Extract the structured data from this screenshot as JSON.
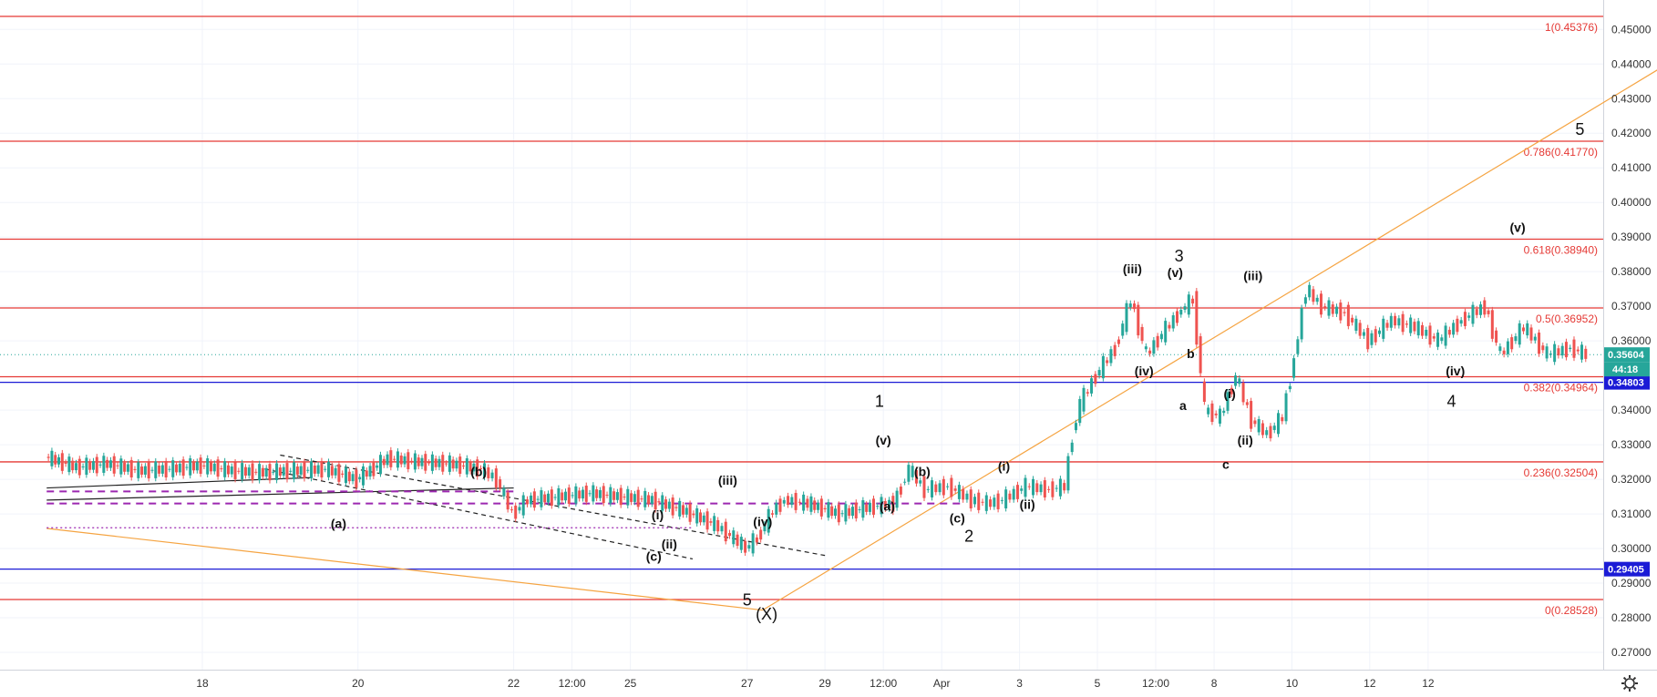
{
  "chart_data": {
    "type": "line",
    "title": "",
    "ylim": [
      0.265,
      0.4585
    ],
    "y_ticks": [
      0.45,
      0.44,
      0.43,
      0.42,
      0.41,
      0.4,
      0.39,
      0.38,
      0.37,
      0.36,
      0.34,
      0.33,
      0.32,
      0.31,
      0.3,
      0.29,
      0.28,
      0.27
    ],
    "y_tick_labels": [
      "0.45000",
      "0.44000",
      "0.43000",
      "0.42000",
      "0.41000",
      "0.40000",
      "0.39000",
      "0.38000",
      "0.37000",
      "0.36000",
      "0.34000",
      "0.33000",
      "0.32000",
      "0.31000",
      "0.30000",
      "0.29000",
      "0.28000",
      "0.27000"
    ],
    "x_ticks": [
      {
        "label": "18",
        "x": 2
      },
      {
        "label": "20",
        "x": 4
      },
      {
        "label": "22",
        "x": 6
      },
      {
        "label": "12:00",
        "x": 6.75
      },
      {
        "label": "25",
        "x": 7.5
      },
      {
        "label": "27",
        "x": 9
      },
      {
        "label": "29",
        "x": 10
      },
      {
        "label": "12:00",
        "x": 10.75
      },
      {
        "label": "Apr",
        "x": 11.5
      },
      {
        "label": "3",
        "x": 12.5
      },
      {
        "label": "5",
        "x": 13.5
      },
      {
        "label": "12:00",
        "x": 14.25
      },
      {
        "label": "8",
        "x": 15
      },
      {
        "label": "10",
        "x": 16
      },
      {
        "label": "12",
        "x": 17
      },
      {
        "label": "12",
        "x": 17.75
      }
    ],
    "fib_levels": [
      {
        "ratio": "1",
        "price": 0.45376,
        "label": "1(0.45376)"
      },
      {
        "ratio": "0.786",
        "price": 0.4177,
        "label": "0.786(0.41770)"
      },
      {
        "ratio": "0.618",
        "price": 0.3894,
        "label": "0.618(0.38940)"
      },
      {
        "ratio": "0.5",
        "price": 0.36952,
        "label": "0.5(0.36952)"
      },
      {
        "ratio": "0.382",
        "price": 0.34964,
        "label": "0.382(0.34964)"
      },
      {
        "ratio": "0.236",
        "price": 0.32504,
        "label": "0.236(0.32504)"
      },
      {
        "ratio": "0",
        "price": 0.28528,
        "label": "0(0.28528)"
      }
    ],
    "horizontal_levels": [
      {
        "price": 0.34803,
        "label": "0.34803"
      },
      {
        "price": 0.29405,
        "label": "0.29405"
      }
    ],
    "current_price": {
      "price": 0.35604,
      "label": "0.35604",
      "countdown": "44:18"
    },
    "price_series": [
      [
        0,
        0.3265
      ],
      [
        0.4,
        0.3235
      ],
      [
        0.8,
        0.3245
      ],
      [
        1.2,
        0.3225
      ],
      [
        1.6,
        0.323
      ],
      [
        2,
        0.324
      ],
      [
        2.4,
        0.3225
      ],
      [
        2.8,
        0.322
      ],
      [
        3.2,
        0.3225
      ],
      [
        3.6,
        0.323
      ],
      [
        4,
        0.32
      ],
      [
        4.4,
        0.326
      ],
      [
        4.8,
        0.325
      ],
      [
        5.2,
        0.3245
      ],
      [
        5.6,
        0.323
      ],
      [
        5.8,
        0.32
      ],
      [
        6,
        0.31
      ],
      [
        6.2,
        0.314
      ],
      [
        6.6,
        0.315
      ],
      [
        7,
        0.316
      ],
      [
        7.4,
        0.315
      ],
      [
        7.8,
        0.314
      ],
      [
        8.2,
        0.311
      ],
      [
        8.6,
        0.307
      ],
      [
        8.9,
        0.302
      ],
      [
        9,
        0.3
      ],
      [
        9.15,
        0.303
      ],
      [
        9.35,
        0.311
      ],
      [
        9.5,
        0.314
      ],
      [
        9.8,
        0.313
      ],
      [
        10.2,
        0.31
      ],
      [
        10.6,
        0.312
      ],
      [
        10.9,
        0.313
      ],
      [
        11,
        0.318
      ],
      [
        11.1,
        0.323
      ],
      [
        11.3,
        0.317
      ],
      [
        11.6,
        0.318
      ],
      [
        11.9,
        0.314
      ],
      [
        12.1,
        0.313
      ],
      [
        12.3,
        0.314
      ],
      [
        12.6,
        0.318
      ],
      [
        12.9,
        0.317
      ],
      [
        13.1,
        0.318
      ],
      [
        13.2,
        0.333
      ],
      [
        13.3,
        0.342
      ],
      [
        13.5,
        0.35
      ],
      [
        13.75,
        0.358
      ],
      [
        13.95,
        0.372
      ],
      [
        14.15,
        0.356
      ],
      [
        14.35,
        0.362
      ],
      [
        14.6,
        0.369
      ],
      [
        14.75,
        0.372
      ],
      [
        14.9,
        0.34
      ],
      [
        15.1,
        0.338
      ],
      [
        15.3,
        0.35
      ],
      [
        15.5,
        0.337
      ],
      [
        15.7,
        0.333
      ],
      [
        15.9,
        0.338
      ],
      [
        16.05,
        0.355
      ],
      [
        16.2,
        0.375
      ],
      [
        16.4,
        0.37
      ],
      [
        16.7,
        0.368
      ],
      [
        17,
        0.36
      ],
      [
        17.3,
        0.366
      ],
      [
        17.6,
        0.364
      ],
      [
        17.9,
        0.36
      ],
      [
        18.2,
        0.366
      ],
      [
        18.5,
        0.37
      ],
      [
        18.7,
        0.356
      ],
      [
        19,
        0.364
      ],
      [
        19.3,
        0.356
      ],
      [
        19.6,
        0.358
      ],
      [
        19.8,
        0.356
      ]
    ],
    "annotations": [
      {
        "text": "1",
        "x": 10.7,
        "y": 0.341,
        "size": "big"
      },
      {
        "text": "(v)",
        "x": 10.75,
        "y": 0.33,
        "size": "small"
      },
      {
        "text": "(b)",
        "x": 11.25,
        "y": 0.321,
        "size": "small"
      },
      {
        "text": "(a)",
        "x": 10.8,
        "y": 0.311,
        "size": "small"
      },
      {
        "text": "(c)",
        "x": 11.7,
        "y": 0.3075,
        "size": "small"
      },
      {
        "text": "2",
        "x": 11.85,
        "y": 0.302,
        "size": "big"
      },
      {
        "text": "(i)",
        "x": 12.3,
        "y": 0.3225,
        "size": "small"
      },
      {
        "text": "(ii)",
        "x": 12.6,
        "y": 0.3115,
        "size": "small"
      },
      {
        "text": "(iii)",
        "x": 13.95,
        "y": 0.3795,
        "size": "small"
      },
      {
        "text": "3",
        "x": 14.55,
        "y": 0.383,
        "size": "big"
      },
      {
        "text": "(v)",
        "x": 14.5,
        "y": 0.3785,
        "size": "small"
      },
      {
        "text": "(iv)",
        "x": 14.1,
        "y": 0.35,
        "size": "small"
      },
      {
        "text": "b",
        "x": 14.7,
        "y": 0.355,
        "size": "small",
        "color": "#2e5e1e"
      },
      {
        "text": "a",
        "x": 14.6,
        "y": 0.34,
        "size": "small",
        "color": "#2e5e1e"
      },
      {
        "text": "(i)",
        "x": 15.2,
        "y": 0.3435,
        "size": "small"
      },
      {
        "text": "(ii)",
        "x": 15.4,
        "y": 0.33,
        "size": "small"
      },
      {
        "text": "c",
        "x": 15.15,
        "y": 0.323,
        "size": "small",
        "color": "#2e5e1e"
      },
      {
        "text": "(iii)",
        "x": 15.5,
        "y": 0.3775,
        "size": "small"
      },
      {
        "text": "(iv)",
        "x": 18.1,
        "y": 0.35,
        "size": "small"
      },
      {
        "text": "4",
        "x": 18.05,
        "y": 0.341,
        "size": "big"
      },
      {
        "text": "(v)",
        "x": 18.9,
        "y": 0.3915,
        "size": "small"
      },
      {
        "text": "5",
        "x": 19.7,
        "y": 0.4195,
        "size": "big"
      },
      {
        "text": "(b)",
        "x": 5.55,
        "y": 0.321,
        "size": "small"
      },
      {
        "text": "(a)",
        "x": 3.75,
        "y": 0.306,
        "size": "small"
      },
      {
        "text": "(iii)",
        "x": 8.75,
        "y": 0.3185,
        "size": "small"
      },
      {
        "text": "(iv)",
        "x": 9.2,
        "y": 0.3065,
        "size": "small"
      },
      {
        "text": "(i)",
        "x": 7.85,
        "y": 0.3085,
        "size": "small"
      },
      {
        "text": "(ii)",
        "x": 8.0,
        "y": 0.3,
        "size": "small"
      },
      {
        "text": "(c)",
        "x": 7.8,
        "y": 0.2965,
        "size": "small"
      },
      {
        "text": "5",
        "x": 9.0,
        "y": 0.2835,
        "size": "big"
      },
      {
        "text": "(X)",
        "x": 9.25,
        "y": 0.2795,
        "size": "big",
        "color": "#e08a1e"
      }
    ],
    "trendlines": [
      {
        "from": [
          0,
          0.3058
        ],
        "to": [
          9.2,
          0.2822
        ],
        "color": "#f5a442",
        "style": "solid"
      },
      {
        "from": [
          9.2,
          0.2822
        ],
        "to": [
          22.0,
          0.456
        ],
        "color": "#f5a442",
        "style": "solid"
      },
      {
        "from": [
          3.0,
          0.327
        ],
        "to": [
          10.0,
          0.298
        ],
        "color": "#222",
        "style": "dashed"
      },
      {
        "from": [
          2.8,
          0.323
        ],
        "to": [
          8.3,
          0.297
        ],
        "color": "#222",
        "style": "dashed"
      },
      {
        "from": [
          0,
          0.3175
        ],
        "to": [
          3.4,
          0.3205
        ],
        "color": "#222",
        "style": "solid"
      },
      {
        "from": [
          0,
          0.314
        ],
        "to": [
          6.0,
          0.3175
        ],
        "color": "#222",
        "style": "solid"
      },
      {
        "from": [
          0,
          0.3165
        ],
        "to": [
          6.0,
          0.3165
        ],
        "color": "#9c27b0",
        "style": "dashed"
      },
      {
        "from": [
          0,
          0.313
        ],
        "to": [
          11.8,
          0.313
        ],
        "color": "#9c27b0",
        "style": "dashed"
      },
      {
        "from": [
          0,
          0.306
        ],
        "to": [
          8.3,
          0.306
        ],
        "color": "#9c27b0",
        "style": "dotted"
      }
    ]
  }
}
